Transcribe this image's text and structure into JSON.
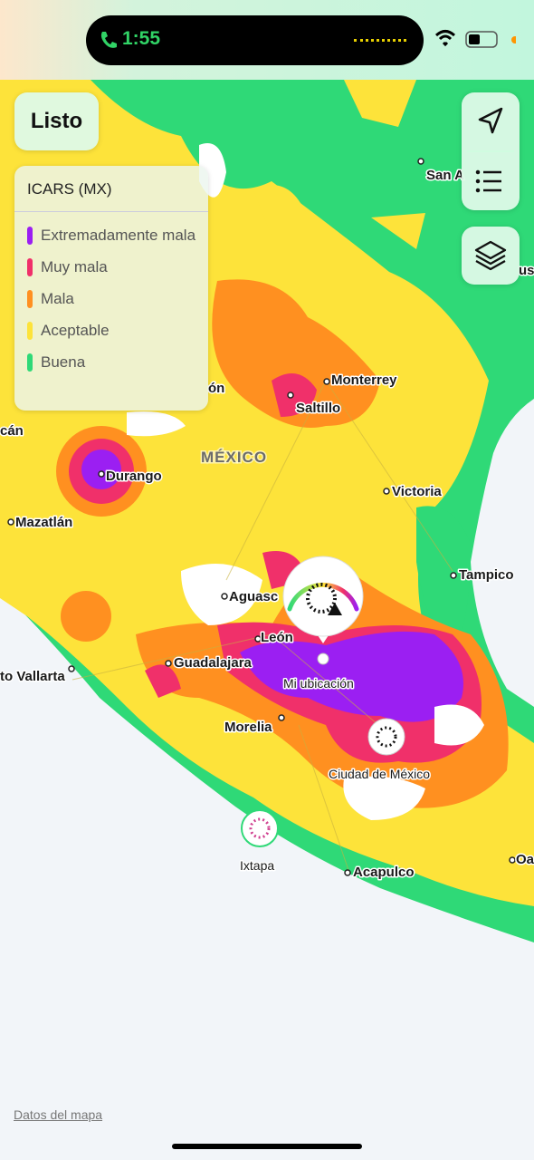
{
  "status_bar": {
    "time": "1:55"
  },
  "buttons": {
    "done": "Listo"
  },
  "legend": {
    "title": "ICARS (MX)",
    "items": [
      {
        "label": "Extremadamente mala",
        "color": "#9b1ff2"
      },
      {
        "label": "Muy mala",
        "color": "#f0306a"
      },
      {
        "label": "Mala",
        "color": "#ff9020"
      },
      {
        "label": "Aceptable",
        "color": "#fde33a"
      },
      {
        "label": "Buena",
        "color": "#2fd977"
      }
    ]
  },
  "map": {
    "country": "MÉXICO",
    "places": [
      "San A",
      "ón",
      "Monterrey",
      "Saltillo",
      "cán",
      "Durango",
      "Victoria",
      "Mazatlán",
      "Tampico",
      "Aguasc",
      "León",
      "Guadalajara",
      "to Vallarta",
      "Morelia",
      "Mi ubicación",
      "Ciudad de México",
      "Ixtapa",
      "Acapulco",
      "Oa",
      "us"
    ]
  },
  "attribution": "Datos del mapa"
}
